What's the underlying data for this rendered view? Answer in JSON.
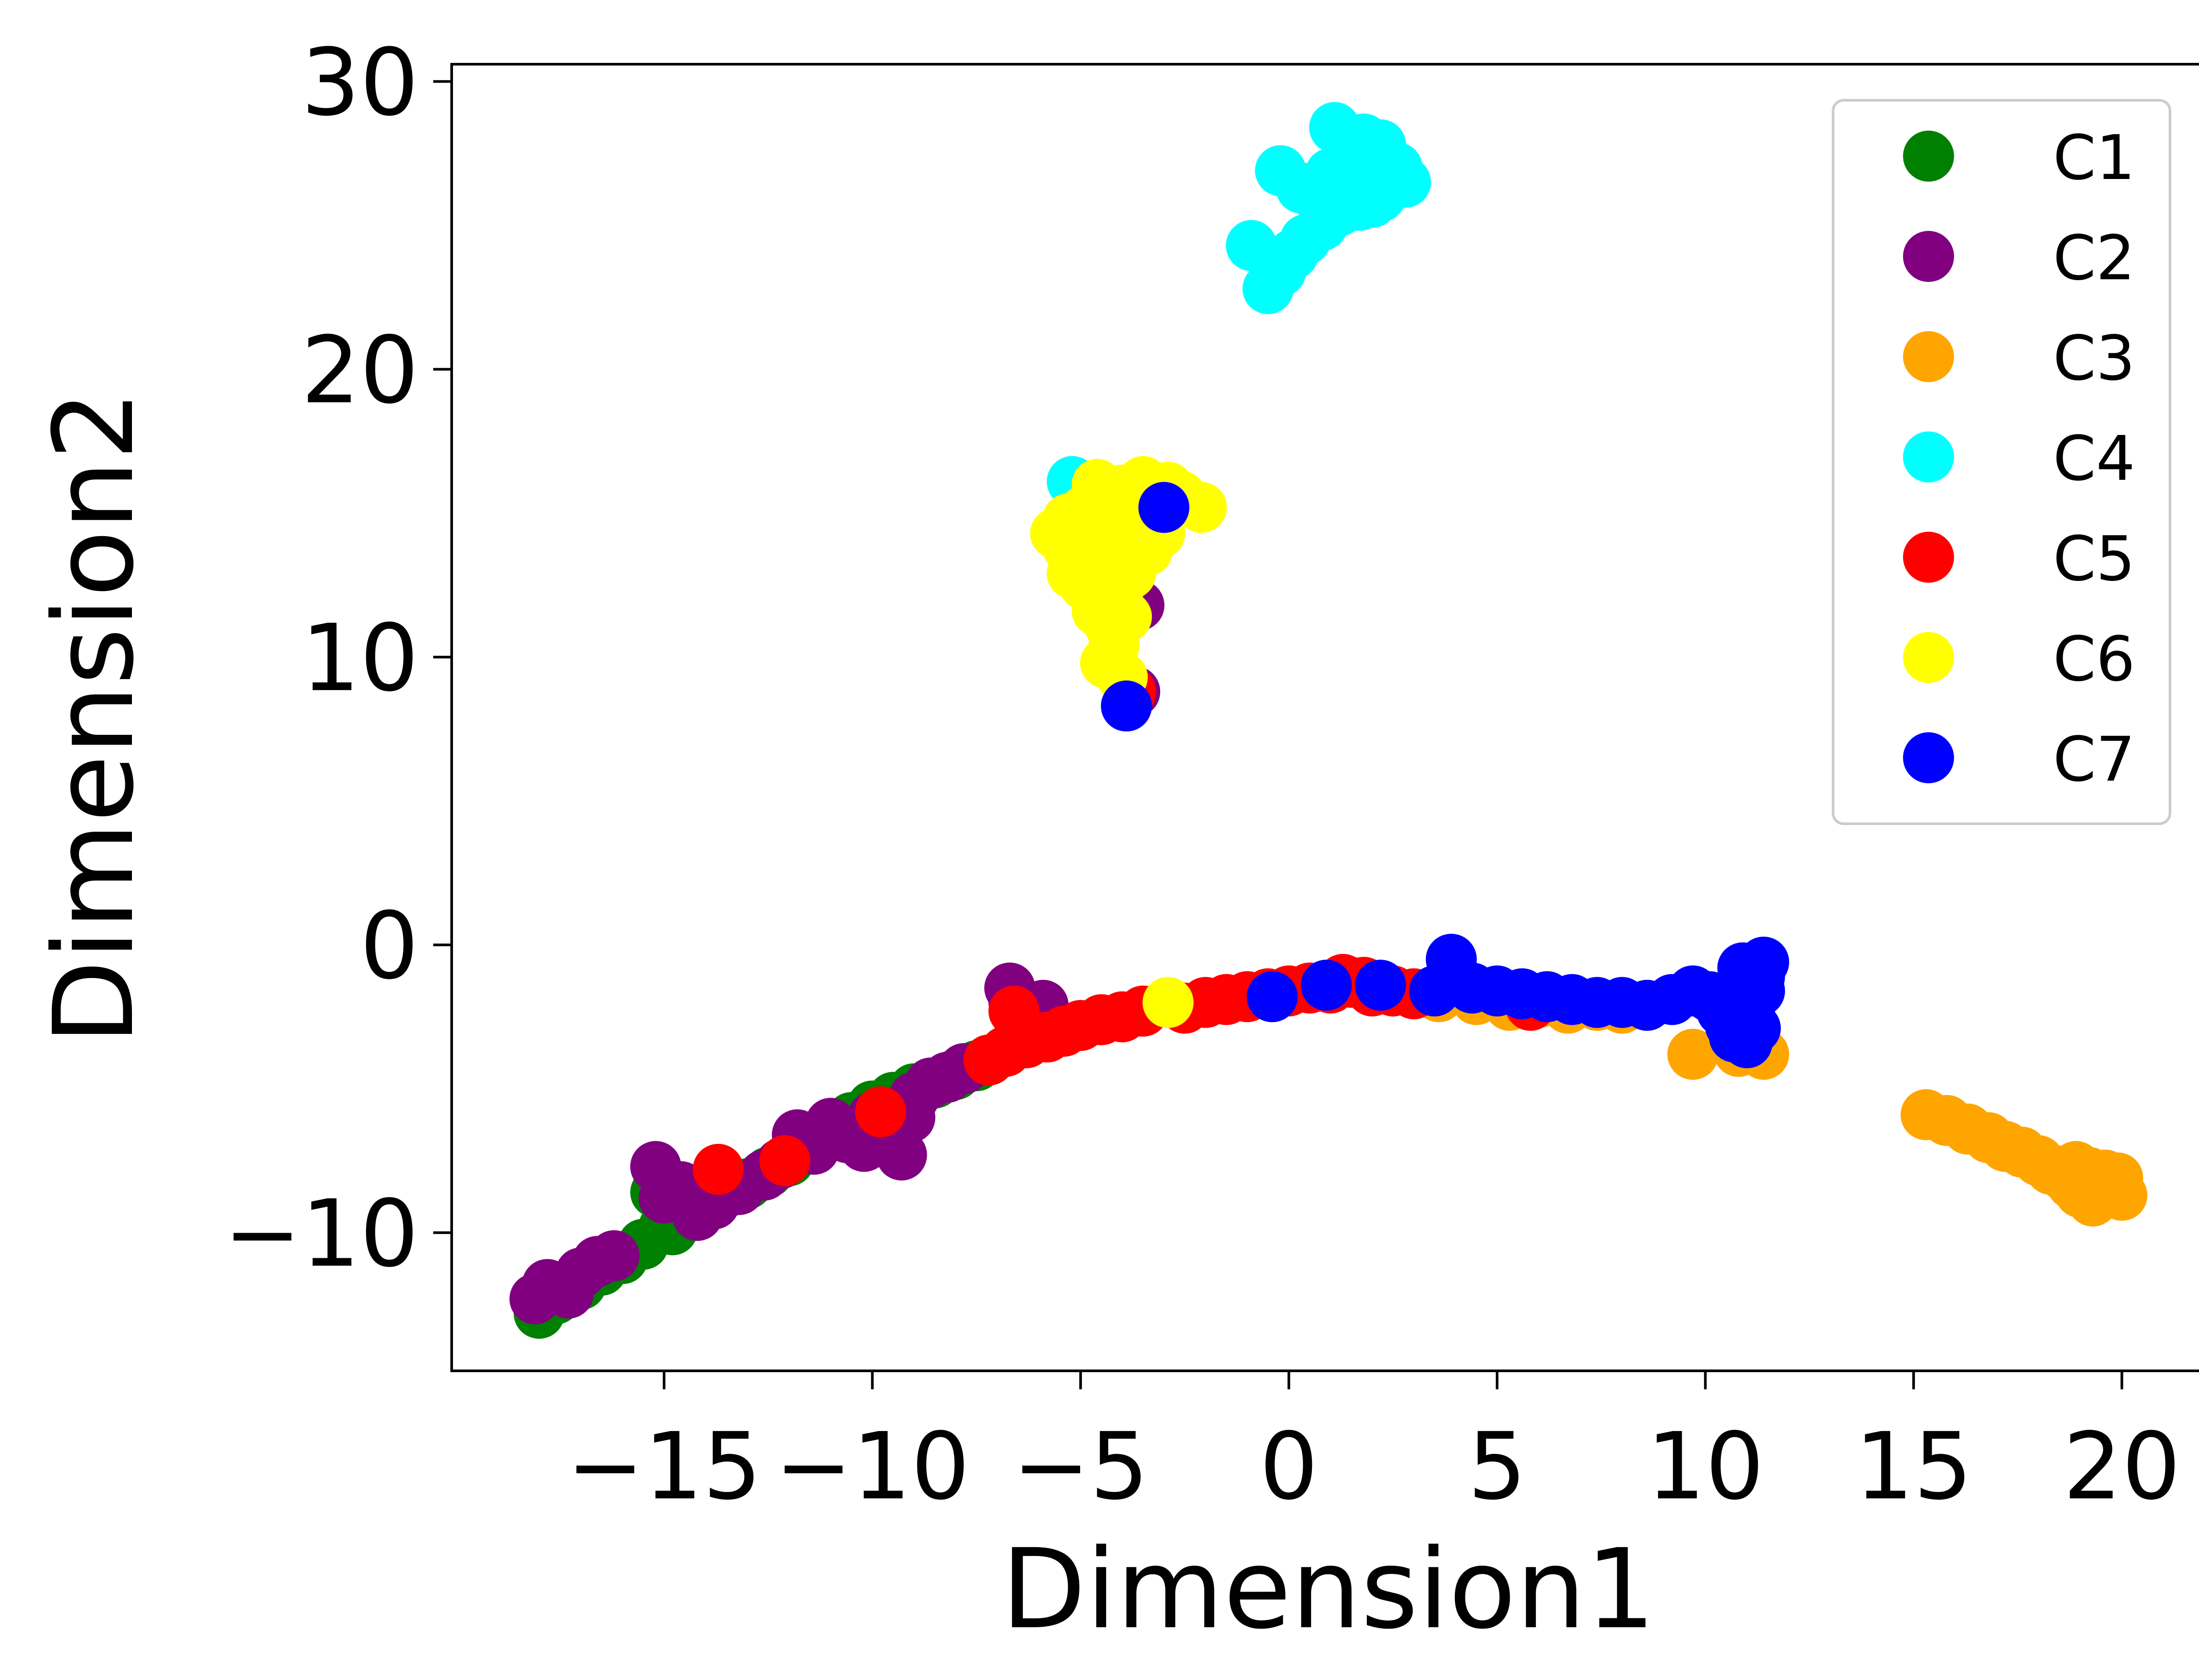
{
  "chart_data": {
    "type": "scatter",
    "title": "",
    "xlabel": "Dimension1",
    "ylabel": "Dimension2",
    "xlim": [
      -20.1,
      22.0
    ],
    "ylim": [
      -14.8,
      30.6
    ],
    "xticks": [
      -15,
      -10,
      -5,
      0,
      5,
      10,
      15,
      20
    ],
    "yticks": [
      -10,
      0,
      10,
      20,
      30
    ],
    "xtick_labels": [
      "−15",
      "−10",
      "−5",
      "0",
      "5",
      "10",
      "15",
      "20"
    ],
    "ytick_labels": [
      "−10",
      "0",
      "10",
      "20",
      "30"
    ],
    "grid": false,
    "legend_position": "top-right",
    "series": [
      {
        "name": "C1",
        "color": "#008000",
        "points": [
          [
            -18.0,
            -12.8
          ],
          [
            -17.6,
            -12.3
          ],
          [
            -17.0,
            -11.8
          ],
          [
            -16.5,
            -11.3
          ],
          [
            -16.0,
            -10.9
          ],
          [
            -15.5,
            -10.4
          ],
          [
            -15.0,
            -9.8
          ],
          [
            -14.8,
            -9.9
          ],
          [
            -15.2,
            -8.6
          ],
          [
            -14.5,
            -9.3
          ],
          [
            -14.0,
            -9.0
          ],
          [
            -13.5,
            -8.6
          ],
          [
            -13.0,
            -8.3
          ],
          [
            -12.5,
            -7.9
          ],
          [
            -12.0,
            -7.5
          ],
          [
            -11.5,
            -7.0
          ],
          [
            -11.0,
            -6.5
          ],
          [
            -10.5,
            -6.0
          ],
          [
            -10.0,
            -5.6
          ],
          [
            -9.5,
            -5.3
          ],
          [
            -9.0,
            -5.0
          ],
          [
            -8.5,
            -4.8
          ],
          [
            -8.0,
            -4.5
          ],
          [
            -7.5,
            -4.2
          ],
          [
            -7.2,
            -4.0
          ]
        ]
      },
      {
        "name": "C2",
        "color": "#800080",
        "points": [
          [
            -18.1,
            -12.3
          ],
          [
            -17.8,
            -11.8
          ],
          [
            -17.3,
            -12.1
          ],
          [
            -17.0,
            -11.4
          ],
          [
            -16.6,
            -11.0
          ],
          [
            -16.2,
            -10.8
          ],
          [
            -15.2,
            -7.7
          ],
          [
            -15.0,
            -8.8
          ],
          [
            -14.6,
            -8.4
          ],
          [
            -14.2,
            -9.4
          ],
          [
            -13.8,
            -9.0
          ],
          [
            -13.2,
            -8.5
          ],
          [
            -12.6,
            -8.0
          ],
          [
            -12.2,
            -7.6
          ],
          [
            -11.8,
            -6.6
          ],
          [
            -11.4,
            -7.1
          ],
          [
            -11.0,
            -6.2
          ],
          [
            -10.6,
            -6.7
          ],
          [
            -10.2,
            -7.0
          ],
          [
            -10.0,
            -6.0
          ],
          [
            -9.6,
            -6.6
          ],
          [
            -9.3,
            -7.3
          ],
          [
            -9.1,
            -6.0
          ],
          [
            -9.0,
            -5.3
          ],
          [
            -8.6,
            -4.8
          ],
          [
            -8.2,
            -4.6
          ],
          [
            -7.8,
            -4.3
          ],
          [
            -6.7,
            -1.5
          ],
          [
            -6.6,
            -2.0
          ],
          [
            -5.9,
            -2.1
          ],
          [
            -3.6,
            11.8
          ],
          [
            -3.7,
            8.8
          ]
        ]
      },
      {
        "name": "C3",
        "color": "#ffa500",
        "points": [
          [
            3.6,
            -1.8
          ],
          [
            4.5,
            -1.9
          ],
          [
            5.3,
            -2.1
          ],
          [
            6.0,
            -2.0
          ],
          [
            6.7,
            -2.2
          ],
          [
            7.4,
            -2.1
          ],
          [
            8.0,
            -2.2
          ],
          [
            9.7,
            -3.8
          ],
          [
            10.8,
            -3.7
          ],
          [
            11.4,
            -3.8
          ],
          [
            15.3,
            -5.9
          ],
          [
            15.8,
            -6.1
          ],
          [
            16.3,
            -6.4
          ],
          [
            16.8,
            -6.7
          ],
          [
            17.2,
            -7.0
          ],
          [
            17.6,
            -7.2
          ],
          [
            18.0,
            -7.5
          ],
          [
            18.3,
            -7.8
          ],
          [
            18.6,
            -8.0
          ],
          [
            18.8,
            -8.3
          ],
          [
            19.0,
            -8.6
          ],
          [
            19.3,
            -8.9
          ],
          [
            19.5,
            -8.7
          ],
          [
            19.7,
            -8.4
          ],
          [
            19.9,
            -8.1
          ],
          [
            20.0,
            -8.7
          ],
          [
            19.6,
            -8.0
          ],
          [
            19.2,
            -7.9
          ],
          [
            18.9,
            -7.7
          ]
        ]
      },
      {
        "name": "C4",
        "color": "#00ffff",
        "points": [
          [
            -5.2,
            16.1
          ],
          [
            -0.9,
            24.3
          ],
          [
            -0.5,
            22.8
          ],
          [
            -0.2,
            23.4
          ],
          [
            0.1,
            24.0
          ],
          [
            0.4,
            24.5
          ],
          [
            0.8,
            25.0
          ],
          [
            1.2,
            25.5
          ],
          [
            -0.2,
            26.9
          ],
          [
            0.3,
            26.3
          ],
          [
            0.6,
            26.1
          ],
          [
            1.0,
            26.8
          ],
          [
            1.1,
            28.4
          ],
          [
            1.5,
            27.4
          ],
          [
            1.8,
            28.0
          ],
          [
            2.0,
            27.2
          ],
          [
            2.2,
            27.8
          ],
          [
            2.4,
            26.6
          ],
          [
            2.6,
            27.0
          ],
          [
            2.8,
            26.5
          ],
          [
            1.7,
            25.7
          ],
          [
            2.2,
            26.0
          ],
          [
            1.4,
            26.2
          ],
          [
            0.9,
            25.9
          ],
          [
            2.0,
            25.8
          ]
        ]
      },
      {
        "name": "C5",
        "color": "#ff0000",
        "points": [
          [
            -13.7,
            -7.8
          ],
          [
            -12.1,
            -7.5
          ],
          [
            -9.8,
            -5.8
          ],
          [
            -7.2,
            -4.0
          ],
          [
            -6.8,
            -3.7
          ],
          [
            -6.6,
            -2.3
          ],
          [
            -6.3,
            -3.4
          ],
          [
            -5.8,
            -3.2
          ],
          [
            -5.4,
            -3.0
          ],
          [
            -5.0,
            -2.8
          ],
          [
            -4.5,
            -2.6
          ],
          [
            -4.0,
            -2.5
          ],
          [
            -3.5,
            -2.3
          ],
          [
            -2.5,
            -2.2
          ],
          [
            -2.0,
            -2.0
          ],
          [
            -1.5,
            -1.9
          ],
          [
            -1.0,
            -1.8
          ],
          [
            -0.5,
            -1.7
          ],
          [
            0.0,
            -1.6
          ],
          [
            0.5,
            -1.5
          ],
          [
            1.0,
            -1.5
          ],
          [
            1.3,
            -1.2
          ],
          [
            1.5,
            -1.3
          ],
          [
            1.8,
            -1.3
          ],
          [
            2.0,
            -1.6
          ],
          [
            2.5,
            -1.6
          ],
          [
            3.0,
            -1.7
          ],
          [
            5.8,
            -2.1
          ],
          [
            -3.8,
            8.8
          ]
        ]
      },
      {
        "name": "C6",
        "color": "#ffff00",
        "points": [
          [
            -2.9,
            -2.0
          ],
          [
            -4.6,
            16.0
          ],
          [
            -4.3,
            15.5
          ],
          [
            -4.0,
            15.8
          ],
          [
            -3.5,
            16.1
          ],
          [
            -3.2,
            15.7
          ],
          [
            -2.9,
            15.9
          ],
          [
            -2.6,
            15.6
          ],
          [
            -2.1,
            15.2
          ],
          [
            -4.9,
            15.1
          ],
          [
            -5.3,
            14.8
          ],
          [
            -5.6,
            14.3
          ],
          [
            -5.3,
            13.8
          ],
          [
            -5.0,
            13.4
          ],
          [
            -5.2,
            12.9
          ],
          [
            -4.9,
            12.5
          ],
          [
            -4.6,
            12.1
          ],
          [
            -4.6,
            11.6
          ],
          [
            -4.3,
            11.1
          ],
          [
            -3.9,
            11.4
          ],
          [
            -4.2,
            10.4
          ],
          [
            -4.4,
            9.8
          ],
          [
            -4.0,
            9.3
          ],
          [
            -3.6,
            14.7
          ],
          [
            -3.1,
            14.3
          ],
          [
            -3.4,
            13.7
          ],
          [
            -4.2,
            14.1
          ],
          [
            -4.7,
            13.4
          ],
          [
            -3.8,
            12.9
          ],
          [
            -4.1,
            12.3
          ],
          [
            -3.5,
            15.2
          ]
        ]
      },
      {
        "name": "C7",
        "color": "#0000ff",
        "points": [
          [
            -3.0,
            15.2
          ],
          [
            -3.9,
            8.3
          ],
          [
            -0.4,
            -1.8
          ],
          [
            0.9,
            -1.4
          ],
          [
            2.2,
            -1.4
          ],
          [
            3.5,
            -1.6
          ],
          [
            3.9,
            -0.5
          ],
          [
            4.4,
            -1.5
          ],
          [
            5.0,
            -1.6
          ],
          [
            5.6,
            -1.7
          ],
          [
            6.2,
            -1.8
          ],
          [
            6.8,
            -1.9
          ],
          [
            7.4,
            -2.0
          ],
          [
            8.0,
            -2.0
          ],
          [
            8.6,
            -2.1
          ],
          [
            9.2,
            -1.9
          ],
          [
            9.7,
            -1.6
          ],
          [
            10.1,
            -1.8
          ],
          [
            10.4,
            -2.3
          ],
          [
            10.6,
            -2.8
          ],
          [
            10.7,
            -3.2
          ],
          [
            10.9,
            -1.3
          ],
          [
            10.9,
            -0.8
          ],
          [
            11.1,
            -2.0
          ],
          [
            11.2,
            -2.9
          ],
          [
            11.3,
            -1.1
          ],
          [
            11.4,
            -0.6
          ],
          [
            11.3,
            -1.6
          ],
          [
            10.8,
            -2.4
          ],
          [
            11.0,
            -3.4
          ]
        ]
      }
    ]
  }
}
